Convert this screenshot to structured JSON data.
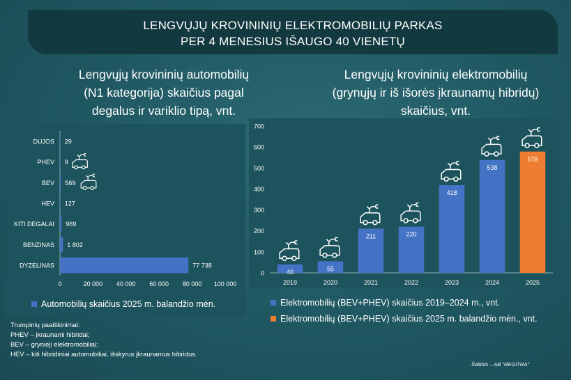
{
  "banner": {
    "line1": "LENGVŲJŲ KROVININIŲ ELEKTROMOBILIŲ PARKAS",
    "line2": "PER 4 MENESIUS IŠAUGO 40 VIENETŲ"
  },
  "left_subtitle": {
    "line1": "Lengvųjų krovininių automobilių",
    "line2": "(N1 kategorija) skaičius pagal",
    "line3": "degalus ir variklio tipą, vnt."
  },
  "right_subtitle": {
    "line1": "Lengvųjų krovininių elektromobilių",
    "line2": "(grynųjų ir iš išorės įkraunamų hibridų)",
    "line3": "skaičius, vnt."
  },
  "chart_data": [
    {
      "type": "bar",
      "orientation": "horizontal",
      "categories": [
        "DUJOS",
        "PHEV",
        "BEV",
        "HEV",
        "KITI DEGALAI",
        "BENZINAS",
        "DYZELINAS"
      ],
      "values": [
        29,
        9,
        569,
        127,
        969,
        1802,
        77738
      ],
      "value_labels": [
        "29",
        "9",
        "569",
        "127",
        "969",
        "1 802",
        "77 738"
      ],
      "xlim": [
        0,
        100000
      ],
      "xticks": [
        "0",
        "20 000",
        "40 000",
        "60 000",
        "80 000",
        "100 000"
      ],
      "series": [
        {
          "name": "Automobilių skaičius 2025 m. balandžio mėn.",
          "color": "#4472c4"
        }
      ],
      "ev_icon_categories": [
        "PHEV",
        "BEV"
      ]
    },
    {
      "type": "bar",
      "categories": [
        "2019",
        "2020",
        "2021",
        "2022",
        "2023",
        "2024",
        "2025"
      ],
      "values": [
        40,
        55,
        211,
        220,
        418,
        538,
        578
      ],
      "ylim": [
        0,
        700
      ],
      "yticks": [
        "0",
        "100",
        "200",
        "300",
        "400",
        "500",
        "600",
        "700"
      ],
      "series": [
        {
          "name": "Elektromobilių (BEV+PHEV) skaičius 2019–2024 m., vnt.",
          "color": "#4472c4"
        },
        {
          "name": "Elektromobilių (BEV+PHEV) skaičius 2025 m. balandžio mėn., vnt.",
          "color": "#ed7d31"
        }
      ]
    }
  ],
  "notes": {
    "title": "Trumpinių paaiškinimai:",
    "phev": "PHEV – įkraunami hibridai;",
    "bev": "BEV – grynieji elektromobiliai;",
    "hev": "HEV – kiti hibridiniai automobiliai, išskyrus įkraunamus hibridus."
  },
  "source": "Šaltinis – AB \"REGITRA\"",
  "icons": [
    "ev-van-icon"
  ]
}
